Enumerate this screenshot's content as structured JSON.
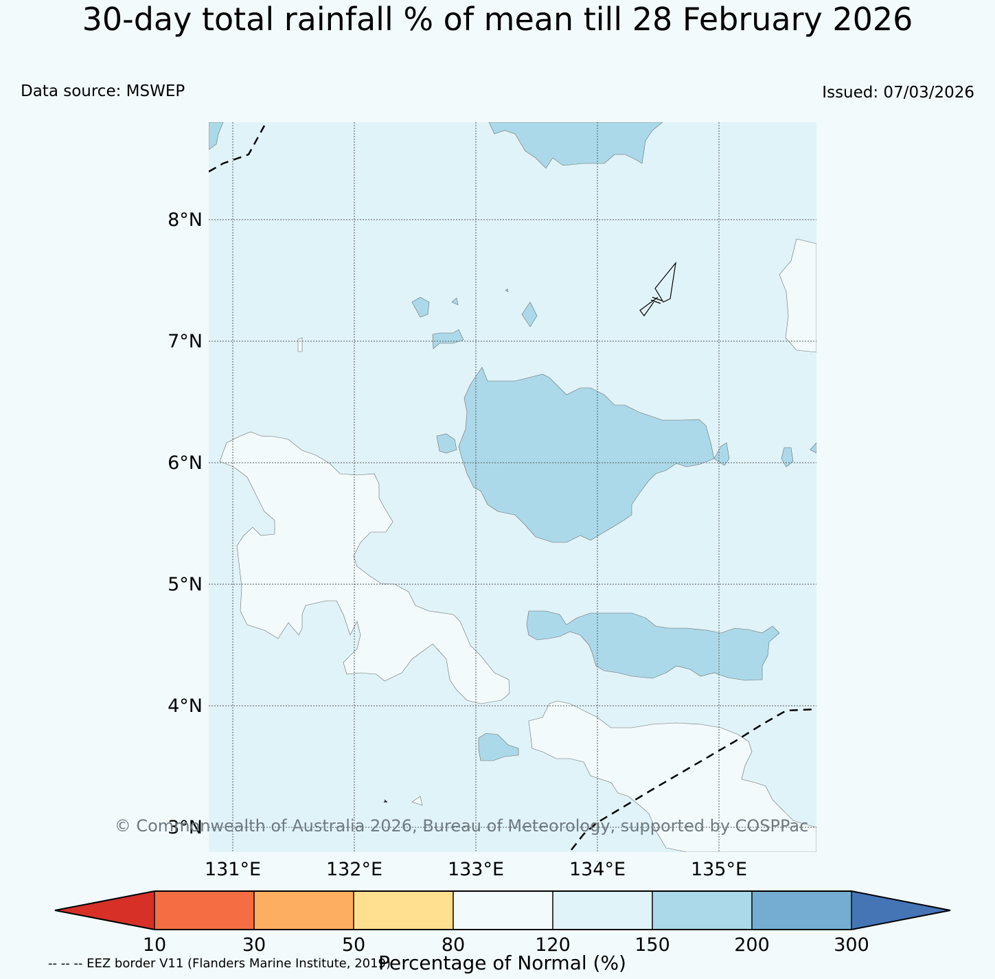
{
  "title": "30-day total rainfall % of mean till 28 February 2026",
  "data_source": "Data source: MSWEP",
  "issued": "Issued: 07/03/2026",
  "map": {
    "lat_labels": [
      "8°N",
      "7°N",
      "6°N",
      "5°N",
      "4°N",
      "3°N"
    ],
    "lon_labels": [
      "131°E",
      "132°E",
      "133°E",
      "134°E",
      "135°E"
    ],
    "credit": "© Commonwealth of Australia 2026, Bureau of Meteorology, supported by COSPPac",
    "colors": {
      "background_class": "#e0f3f8",
      "below_class": "#f2fafc",
      "above_class": "#abd9e9"
    }
  },
  "colorbar": {
    "ticks": [
      "10",
      "30",
      "50",
      "80",
      "120",
      "150",
      "200",
      "300"
    ],
    "colors": [
      "#d73027",
      "#f46d43",
      "#fdae61",
      "#fee090",
      "#f2fafc",
      "#e0f3f8",
      "#abd9e9",
      "#74add1",
      "#4575b4"
    ],
    "title": "Percentage of Normal (%)"
  },
  "eez_note": "-- -- -- EEZ border V11 (Flanders Marine Institute, 2019)"
}
